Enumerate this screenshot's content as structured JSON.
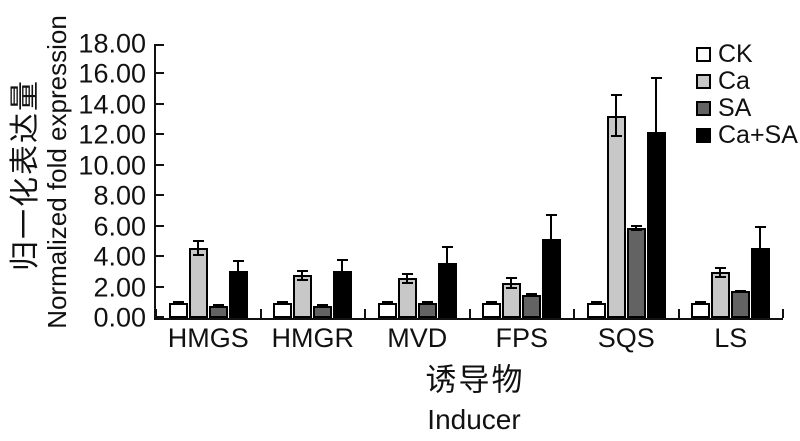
{
  "figure": {
    "background": "#ffffff",
    "text_color": "#111111",
    "axis_color": "#111111"
  },
  "chart_data": {
    "type": "bar",
    "title": "",
    "categories": [
      "HMGS",
      "HMGR",
      "MVD",
      "FPS",
      "SQS",
      "LS"
    ],
    "series": [
      {
        "name": "CK",
        "color": "#ffffff",
        "values": [
          1.0,
          1.0,
          1.0,
          1.0,
          1.0,
          1.0
        ],
        "errors": [
          0.1,
          0.1,
          0.1,
          0.1,
          0.1,
          0.1
        ]
      },
      {
        "name": "Ca",
        "color": "#c8c8c8",
        "values": [
          4.6,
          2.8,
          2.6,
          2.3,
          13.3,
          3.0
        ],
        "errors": [
          0.5,
          0.35,
          0.35,
          0.4,
          1.4,
          0.35
        ]
      },
      {
        "name": "SA",
        "color": "#636363",
        "values": [
          0.8,
          0.8,
          1.0,
          1.5,
          5.9,
          1.75
        ],
        "errors": [
          0.1,
          0.1,
          0.1,
          0.15,
          0.2,
          0.12
        ]
      },
      {
        "name": "Ca+SA",
        "color": "#000000",
        "values": [
          3.1,
          3.1,
          3.6,
          5.2,
          12.2,
          4.6
        ],
        "errors": [
          0.7,
          0.8,
          1.1,
          1.6,
          3.6,
          1.45
        ]
      }
    ],
    "error_bars": true,
    "ylabel_zh": "归一化表达量",
    "ylabel_en": "Normalized fold expression",
    "xlabel_zh": "诱导物",
    "xlabel_en": "Inducer",
    "ylim": [
      0,
      18
    ],
    "ytick_step": 2,
    "ytick_labels": [
      "0.00",
      "2.00",
      "4.00",
      "6.00",
      "8.00",
      "10.00",
      "12.00",
      "14.00",
      "16.00",
      "18.00"
    ],
    "grid": false,
    "legend_position": "top-right"
  }
}
